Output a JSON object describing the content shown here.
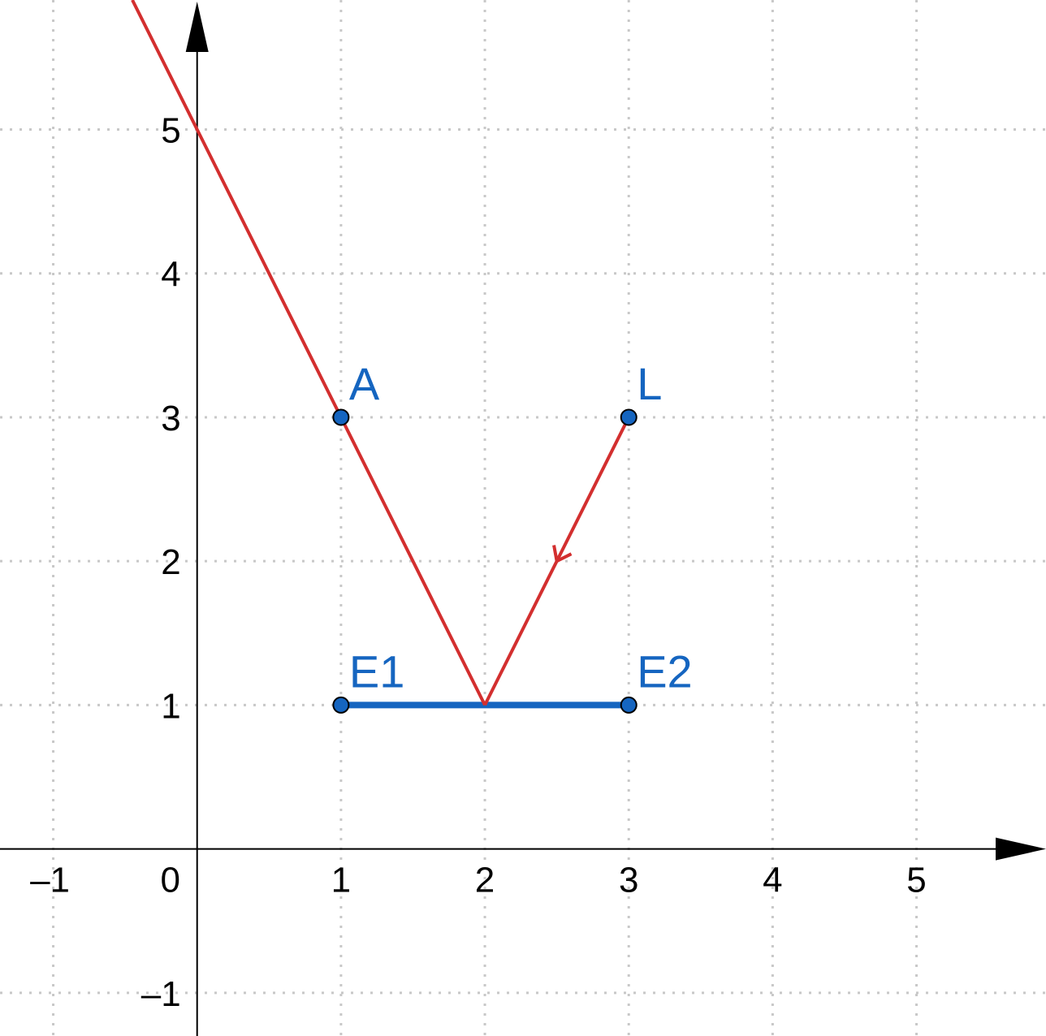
{
  "colors": {
    "ray": "#d32f2f",
    "mirror": "#1565c0",
    "point_fill": "#1565c0",
    "label": "#1565c0",
    "axis": "#000000",
    "grid": "#c8c8c8"
  },
  "axes": {
    "x_range": [
      -1.37,
      5.9
    ],
    "y_range": [
      -1.3,
      5.9
    ],
    "x_ticks": [
      {
        "value": -1,
        "label": "–1"
      },
      {
        "value": 0,
        "label": "0"
      },
      {
        "value": 1,
        "label": "1"
      },
      {
        "value": 2,
        "label": "2"
      },
      {
        "value": 3,
        "label": "3"
      },
      {
        "value": 4,
        "label": "4"
      },
      {
        "value": 5,
        "label": "5"
      }
    ],
    "y_ticks": [
      {
        "value": -1,
        "label": "–1"
      },
      {
        "value": 1,
        "label": "1"
      },
      {
        "value": 2,
        "label": "2"
      },
      {
        "value": 3,
        "label": "3"
      },
      {
        "value": 4,
        "label": "4"
      },
      {
        "value": 5,
        "label": "5"
      }
    ],
    "grid": true
  },
  "points": [
    {
      "id": "A",
      "label": "A",
      "x": 1,
      "y": 3
    },
    {
      "id": "L",
      "label": "L",
      "x": 3,
      "y": 3
    },
    {
      "id": "E1",
      "label": "E1",
      "x": 1,
      "y": 1
    },
    {
      "id": "E2",
      "label": "E2",
      "x": 3,
      "y": 1
    }
  ],
  "mirror_segment": {
    "from": [
      1,
      1
    ],
    "to": [
      3,
      1
    ]
  },
  "incident_ray": {
    "from": [
      3,
      3
    ],
    "to": [
      2,
      1
    ],
    "arrow_at": [
      2.5,
      2
    ]
  },
  "reflected_ray": {
    "from": [
      2,
      1
    ],
    "through": [
      1,
      3
    ],
    "to": [
      -0.45,
      5.9
    ]
  }
}
